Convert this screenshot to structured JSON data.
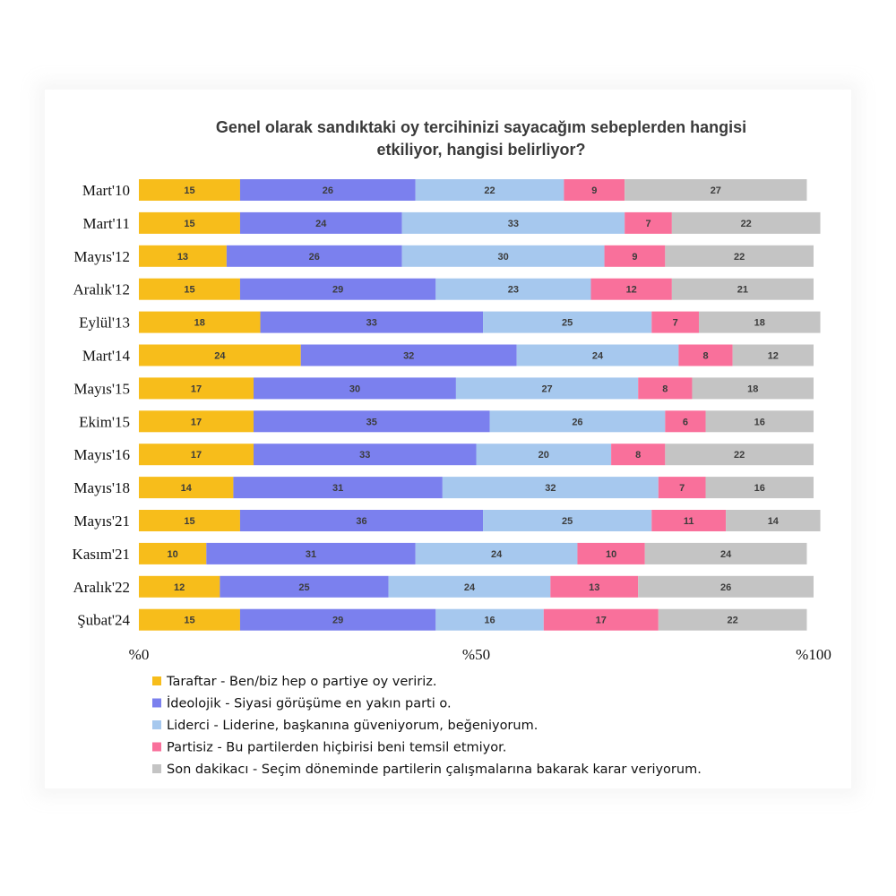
{
  "chart_data": {
    "type": "bar",
    "orientation": "horizontal",
    "stacked": true,
    "title": "Genel olarak sandıktaki oy tercihinizi sayacağım sebeplerden hangisi etkiliyor, hangisi belirliyor?",
    "categories": [
      "Mart'10",
      "Mart'11",
      "Mayıs'12",
      "Aralık'12",
      "Eylül'13",
      "Mart'14",
      "Mayıs'15",
      "Ekim'15",
      "Mayıs'16",
      "Mayıs'18",
      "Mayıs'21",
      "Kasım'21",
      "Aralık'22",
      "Şubat'24"
    ],
    "series": [
      {
        "name": "Taraftar - Ben/biz hep o partiye oy veririz.",
        "color": "#f7bd1b",
        "values": [
          15,
          15,
          13,
          15,
          18,
          24,
          17,
          17,
          17,
          14,
          15,
          10,
          12,
          15
        ]
      },
      {
        "name": "İdeolojik - Siyasi görüşüme en yakın parti o.",
        "color": "#7b80ee",
        "values": [
          26,
          24,
          26,
          29,
          33,
          32,
          30,
          35,
          33,
          31,
          36,
          31,
          25,
          29
        ]
      },
      {
        "name": "Liderci - Liderine, başkanına güveniyorum, beğeniyorum.",
        "color": "#a6c8ee",
        "values": [
          22,
          33,
          30,
          23,
          25,
          24,
          27,
          26,
          20,
          32,
          25,
          24,
          24,
          16
        ]
      },
      {
        "name": "Partisiz - Bu partilerden hiçbirisi beni temsil etmiyor.",
        "color": "#f9709b",
        "values": [
          9,
          7,
          9,
          12,
          7,
          8,
          8,
          6,
          8,
          7,
          11,
          10,
          13,
          17
        ]
      },
      {
        "name": "Son dakikacı - Seçim döneminde partilerin çalışmalarına bakarak karar veriyorum.",
        "color": "#c4c4c4",
        "values": [
          27,
          22,
          22,
          21,
          18,
          12,
          18,
          16,
          22,
          16,
          14,
          24,
          26,
          22
        ]
      }
    ],
    "xlim": [
      0,
      100
    ],
    "xticks": [
      "%0",
      "%50",
      "%100"
    ],
    "xtick_values": [
      0,
      50,
      100
    ],
    "grid": false,
    "legend": "bottom"
  }
}
